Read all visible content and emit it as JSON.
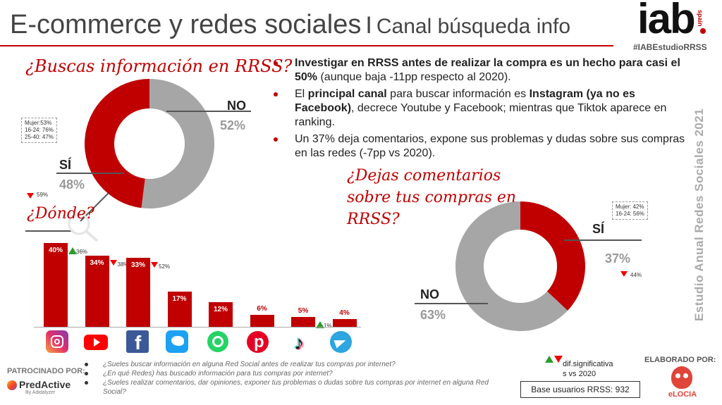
{
  "header": {
    "title_main": "E-commerce y redes sociales",
    "separator": "I",
    "title_sub": "Canal búsqueda info",
    "logo_text": "iab",
    "logo_spain": "spain",
    "hashtag": "#IABEstudioRRSS"
  },
  "vertical_text": "Estudio Anual Redes Sociales 2021",
  "question1": "¿Buscas información en RRSS?",
  "donut1": {
    "no_label": "NO",
    "no_pct": "52%",
    "si_label": "SÍ",
    "si_pct": "48%",
    "note_lines": [
      "Mujer:53%",
      "16-24: 76%",
      "25-40: 47%"
    ],
    "diff": "59%",
    "values": {
      "si": 48,
      "no": 52
    },
    "colors": {
      "si": "#c00000",
      "no": "#a6a6a6"
    }
  },
  "question2": "¿Dejas comentarios sobre tus compras en RRSS?",
  "donut2": {
    "si_label": "SÍ",
    "si_pct": "37%",
    "no_label": "NO",
    "no_pct": "63%",
    "note_lines": [
      "Mujer: 42%",
      "16-24: 56%"
    ],
    "diff": "44%",
    "values": {
      "si": 37,
      "no": 63
    },
    "colors": {
      "si": "#c00000",
      "no": "#a6a6a6"
    }
  },
  "question3": "¿Dónde?",
  "bullets": [
    {
      "b1": "Investigar en RRSS antes de realizar la compra es un hecho para casi el 50%",
      "t1": " (aunque baja -11pp respecto al 2020)."
    },
    {
      "t0": "El ",
      "b1": "principal canal",
      "t1": " para buscar información es ",
      "b2": "Instagram (ya no es Facebook)",
      "t2": ", decrece Youtube y Facebook; mientras que Tiktok aparece en ranking."
    },
    {
      "t0": "Un 37% deja comentarios, expone sus problemas y dudas sobre sus compras en las redes (-7pp vs 2020)."
    }
  ],
  "chart_data": {
    "type": "bar",
    "categories": [
      "Instagram",
      "YouTube",
      "Facebook",
      "Twitter",
      "WhatsApp",
      "Pinterest",
      "TikTok",
      "Telegram"
    ],
    "values": [
      40,
      34,
      33,
      17,
      12,
      6,
      5,
      4
    ],
    "labels": [
      "40%",
      "34%",
      "33%",
      "17%",
      "12%",
      "6%",
      "5%",
      "4%"
    ],
    "prev_labels": [
      "36%",
      "38%",
      "52%",
      "",
      "",
      "",
      "1%",
      ""
    ],
    "trend": [
      "up",
      "down",
      "down",
      "",
      "",
      "",
      "up",
      ""
    ],
    "ylim": [
      0,
      40
    ],
    "bar_color": "#c00000"
  },
  "footer": {
    "patrocinado": "PATROCINADO POR:",
    "predactive": "PredActive",
    "predactive_sub": "By Adidalyzer",
    "questions": [
      "¿Sueles buscar información en alguna Red Social antes de realizar tus compras por internet?",
      "¿En qué Redes) has buscado información para tus compras por internet?",
      "¿Sueles realizar comentarios, dar opiniones, exponer tus problemas o dudas sobre tus compras por internet en alguna Red Social?"
    ],
    "dif_line1": "dif.significativa",
    "dif_line2": "s vs 2020",
    "base": "Base usuarios RRSS: 932",
    "elaborado": "ELABORADO POR:",
    "elocia": "eLOCIA"
  }
}
